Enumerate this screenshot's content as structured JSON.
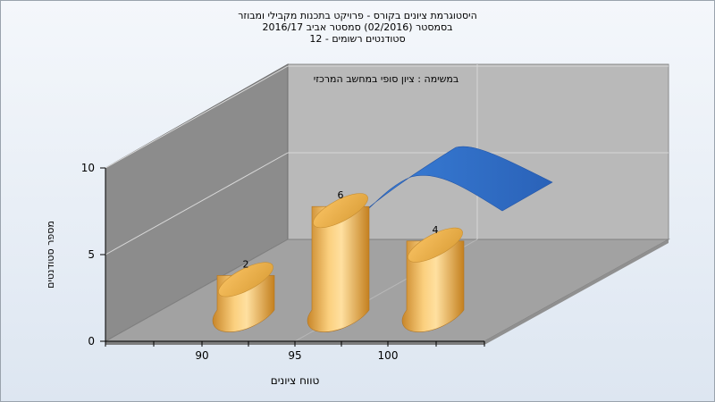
{
  "title_lines": [
    "היסטוגרמת ציונים בקורס - פרויקט בתכנות מקבילי ומבוזר",
    "בסמסטר  (02/2016)  סמסטר אביב 2016/17",
    "סטודנטים רשומים - 12"
  ],
  "chart_data": {
    "type": "bar",
    "title": "היסטוגרמת ציונים בקורס - פרויקט בתכנות מקבילי ומבוזר",
    "annotation": "במשימה : ציון סופי במחשב המרכזי",
    "xlabel": "טווח ציונים",
    "ylabel": "מספר סטודנטים",
    "categories": [
      "90",
      "95",
      "100"
    ],
    "x_ticks": [
      "90",
      "95",
      "100"
    ],
    "y_ticks": [
      "0",
      "5",
      "10"
    ],
    "ylim": [
      0,
      10
    ],
    "series": [
      {
        "values": [
          2,
          6,
          4
        ],
        "color": "#f0b040",
        "labels": [
          "2",
          "6",
          "4"
        ]
      }
    ],
    "curve_color": "#2e6bc6",
    "grid": true,
    "style": "3d-cylinder"
  }
}
